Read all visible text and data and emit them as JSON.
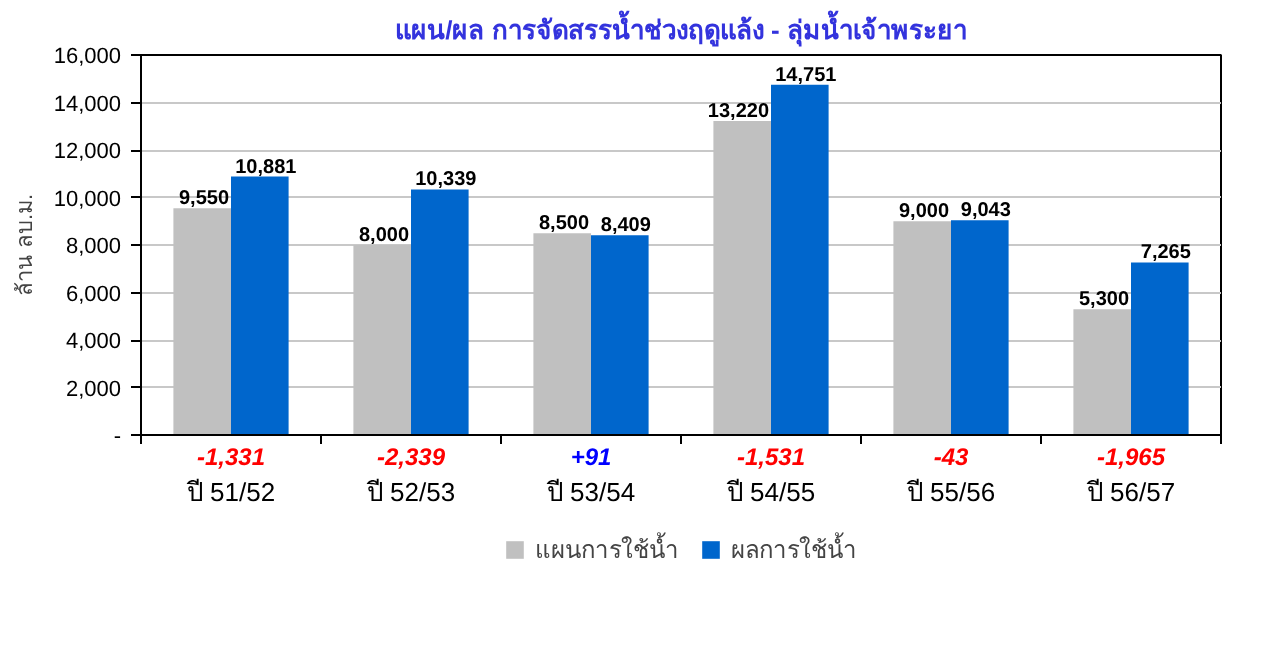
{
  "chart_data": {
    "type": "bar",
    "title": "แผน/ผล การจัดสรรน้ำช่วงฤดูแล้ง - ลุ่มน้ำเจ้าพระยา",
    "ylabel": "ล้าน ลบ.ม.",
    "categories": [
      "ปี 51/52",
      "ปี 52/53",
      "ปี 53/54",
      "ปี 54/55",
      "ปี 55/56",
      "ปี 56/57"
    ],
    "series": [
      {
        "name": "แผนการใช้น้ำ",
        "color": "#c0c0c0",
        "values": [
          9550,
          8000,
          8500,
          13220,
          9000,
          5300
        ],
        "value_labels": [
          "9,550",
          "8,000",
          "8,500",
          "13,220",
          "9,000",
          "5,300"
        ]
      },
      {
        "name": "ผลการใช้น้ำ",
        "color": "#0066cc",
        "values": [
          10881,
          10339,
          8409,
          14751,
          9043,
          7265
        ],
        "value_labels": [
          "10,881",
          "10,339",
          "8,409",
          "14,751",
          "9,043",
          "7,265"
        ]
      }
    ],
    "annotations": [
      "-1,331",
      "-2,339",
      "+91",
      "-1,531",
      "-43",
      "-1,965"
    ],
    "ylim": [
      0,
      16000
    ],
    "yticks": [
      {
        "value": 0,
        "label": "-"
      },
      {
        "value": 2000,
        "label": "2,000"
      },
      {
        "value": 4000,
        "label": "4,000"
      },
      {
        "value": 6000,
        "label": "6,000"
      },
      {
        "value": 8000,
        "label": "8,000"
      },
      {
        "value": 10000,
        "label": "10,000"
      },
      {
        "value": 12000,
        "label": "12,000"
      },
      {
        "value": 14000,
        "label": "14,000"
      },
      {
        "value": 16000,
        "label": "16,000"
      }
    ],
    "grid": "y",
    "legend": "bottom"
  }
}
